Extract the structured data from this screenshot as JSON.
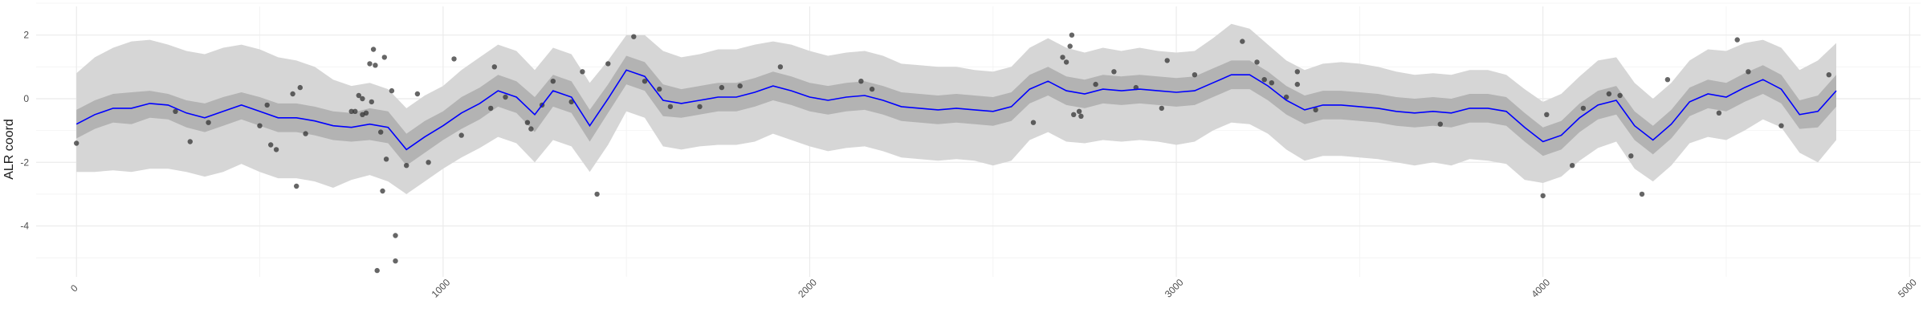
{
  "chart_data": {
    "type": "line",
    "title": "",
    "xlabel": "",
    "ylabel": "ALR coord",
    "xlim": [
      -110,
      5030
    ],
    "ylim": [
      -5.6,
      2.9
    ],
    "grid": true,
    "legend": "none",
    "x_ticks": [
      0,
      1000,
      2000,
      3000,
      4000,
      5000
    ],
    "x_tick_labels": [
      "0",
      "1000",
      "2000",
      "3000",
      "4000",
      "5000"
    ],
    "y_ticks": [
      2,
      0,
      -2,
      -4
    ],
    "y_tick_labels": [
      "2",
      "0",
      "-2",
      "-4"
    ],
    "colors": {
      "line": "#0000ff",
      "inner_band": "#b3b3b3",
      "outer_band": "#d6d6d6",
      "points": "#333333",
      "grid_major": "#ebebeb",
      "grid_minor": "#f4f4f4"
    },
    "series": [
      {
        "type": "line",
        "x": [
          0,
          50,
          100,
          150,
          200,
          250,
          300,
          350,
          400,
          450,
          500,
          550,
          600,
          650,
          700,
          750,
          800,
          850,
          900,
          950,
          1000,
          1050,
          1100,
          1150,
          1200,
          1250,
          1300,
          1350,
          1400,
          1450,
          1500,
          1550,
          1600,
          1650,
          1700,
          1750,
          1800,
          1850,
          1900,
          1950,
          2000,
          2050,
          2100,
          2150,
          2200,
          2250,
          2300,
          2350,
          2400,
          2450,
          2500,
          2550,
          2600,
          2650,
          2700,
          2750,
          2800,
          2850,
          2900,
          2950,
          3000,
          3050,
          3100,
          3150,
          3200,
          3250,
          3300,
          3350,
          3400,
          3450,
          3500,
          3550,
          3600,
          3650,
          3700,
          3750,
          3800,
          3850,
          3900,
          3950,
          4000,
          4050,
          4100,
          4150,
          4200,
          4250,
          4300,
          4350,
          4400,
          4450,
          4500,
          4550,
          4600,
          4650,
          4700,
          4750,
          4800
        ],
        "y": [
          -0.8,
          -0.5,
          -0.3,
          -0.3,
          -0.15,
          -0.2,
          -0.45,
          -0.6,
          -0.4,
          -0.2,
          -0.4,
          -0.6,
          -0.6,
          -0.7,
          -0.85,
          -0.9,
          -0.8,
          -0.9,
          -1.6,
          -1.2,
          -0.85,
          -0.45,
          -0.15,
          0.25,
          0.05,
          -0.5,
          0.25,
          0.05,
          -0.85,
          0.0,
          0.9,
          0.7,
          -0.05,
          -0.15,
          -0.05,
          0.05,
          0.05,
          0.2,
          0.4,
          0.25,
          0.05,
          -0.05,
          0.05,
          0.1,
          -0.05,
          -0.25,
          -0.3,
          -0.35,
          -0.3,
          -0.35,
          -0.4,
          -0.25,
          0.3,
          0.55,
          0.25,
          0.15,
          0.3,
          0.25,
          0.3,
          0.25,
          0.2,
          0.25,
          0.5,
          0.75,
          0.75,
          0.4,
          -0.05,
          -0.35,
          -0.2,
          -0.2,
          -0.25,
          -0.3,
          -0.4,
          -0.45,
          -0.4,
          -0.45,
          -0.3,
          -0.3,
          -0.4,
          -0.9,
          -1.35,
          -1.15,
          -0.6,
          -0.2,
          -0.05,
          -0.85,
          -1.3,
          -0.8,
          -0.1,
          0.15,
          0.05,
          0.35,
          0.6,
          0.3,
          -0.5,
          -0.4,
          0.25
        ],
        "inner_upper": [
          -0.35,
          -0.05,
          0.15,
          0.2,
          0.25,
          0.15,
          -0.05,
          -0.15,
          0.05,
          0.2,
          0.05,
          -0.15,
          -0.15,
          -0.25,
          -0.4,
          -0.45,
          -0.3,
          -0.4,
          -1.1,
          -0.7,
          -0.4,
          0.05,
          0.35,
          0.75,
          0.55,
          0.05,
          0.75,
          0.55,
          -0.35,
          0.45,
          1.35,
          1.15,
          0.45,
          0.3,
          0.4,
          0.5,
          0.5,
          0.65,
          0.85,
          0.7,
          0.5,
          0.4,
          0.5,
          0.55,
          0.4,
          0.2,
          0.15,
          0.1,
          0.15,
          0.1,
          0.05,
          0.2,
          0.75,
          1.0,
          0.7,
          0.6,
          0.75,
          0.7,
          0.75,
          0.7,
          0.65,
          0.7,
          0.95,
          1.2,
          1.2,
          0.85,
          0.4,
          0.1,
          0.25,
          0.25,
          0.2,
          0.15,
          0.05,
          0.0,
          0.05,
          0.0,
          0.15,
          0.15,
          0.05,
          -0.45,
          -0.9,
          -0.7,
          -0.15,
          0.25,
          0.4,
          -0.4,
          -0.85,
          -0.35,
          0.35,
          0.6,
          0.5,
          0.8,
          1.05,
          0.75,
          -0.05,
          0.1,
          0.75
        ],
        "inner_lower": [
          -1.25,
          -0.95,
          -0.75,
          -0.8,
          -0.6,
          -0.65,
          -0.9,
          -1.05,
          -0.85,
          -0.65,
          -0.85,
          -1.05,
          -1.05,
          -1.15,
          -1.3,
          -1.35,
          -1.3,
          -1.4,
          -2.1,
          -1.7,
          -1.3,
          -0.95,
          -0.65,
          -0.25,
          -0.45,
          -1.05,
          -0.25,
          -0.45,
          -1.35,
          -0.45,
          0.45,
          0.25,
          -0.55,
          -0.6,
          -0.5,
          -0.4,
          -0.4,
          -0.25,
          -0.05,
          -0.2,
          -0.4,
          -0.5,
          -0.4,
          -0.35,
          -0.5,
          -0.7,
          -0.75,
          -0.8,
          -0.75,
          -0.8,
          -0.85,
          -0.7,
          -0.15,
          0.1,
          -0.2,
          -0.3,
          -0.15,
          -0.2,
          -0.15,
          -0.2,
          -0.25,
          -0.2,
          0.05,
          0.3,
          0.3,
          -0.05,
          -0.5,
          -0.8,
          -0.65,
          -0.65,
          -0.7,
          -0.75,
          -0.85,
          -0.9,
          -0.85,
          -0.9,
          -0.75,
          -0.75,
          -0.85,
          -1.35,
          -1.8,
          -1.6,
          -1.05,
          -0.65,
          -0.5,
          -1.3,
          -1.75,
          -1.25,
          -0.55,
          -0.3,
          -0.4,
          -0.1,
          0.15,
          -0.15,
          -0.95,
          -0.9,
          -0.25
        ],
        "outer_upper": [
          0.8,
          1.3,
          1.6,
          1.8,
          1.85,
          1.7,
          1.5,
          1.4,
          1.6,
          1.7,
          1.55,
          1.3,
          1.2,
          1.0,
          0.6,
          0.4,
          0.5,
          0.3,
          -0.3,
          0.1,
          0.4,
          0.9,
          1.3,
          1.7,
          1.5,
          0.9,
          1.6,
          1.4,
          0.5,
          1.2,
          2.0,
          2.0,
          1.5,
          1.3,
          1.4,
          1.55,
          1.55,
          1.7,
          1.8,
          1.7,
          1.5,
          1.35,
          1.45,
          1.5,
          1.35,
          1.1,
          1.05,
          1.0,
          1.0,
          0.9,
          0.85,
          1.0,
          1.6,
          1.9,
          1.6,
          1.45,
          1.6,
          1.5,
          1.6,
          1.5,
          1.45,
          1.5,
          1.9,
          2.35,
          2.2,
          1.7,
          1.2,
          0.9,
          1.1,
          1.15,
          1.1,
          1.0,
          0.85,
          0.75,
          0.8,
          0.75,
          0.9,
          0.9,
          0.75,
          0.3,
          -0.1,
          0.15,
          0.7,
          1.2,
          1.3,
          0.5,
          0.0,
          0.5,
          1.2,
          1.55,
          1.5,
          1.75,
          1.85,
          1.6,
          0.9,
          1.2,
          1.75
        ],
        "outer_lower": [
          -2.3,
          -2.3,
          -2.25,
          -2.3,
          -2.2,
          -2.2,
          -2.3,
          -2.45,
          -2.3,
          -2.05,
          -2.3,
          -2.5,
          -2.5,
          -2.6,
          -2.8,
          -2.55,
          -2.4,
          -2.6,
          -3.0,
          -2.6,
          -2.2,
          -1.85,
          -1.55,
          -1.2,
          -1.4,
          -2.0,
          -1.3,
          -1.5,
          -2.3,
          -1.45,
          -0.4,
          -0.6,
          -1.5,
          -1.6,
          -1.5,
          -1.45,
          -1.45,
          -1.35,
          -1.1,
          -1.3,
          -1.5,
          -1.65,
          -1.55,
          -1.5,
          -1.65,
          -1.85,
          -1.9,
          -1.95,
          -1.9,
          -1.95,
          -2.1,
          -1.95,
          -1.3,
          -1.05,
          -1.35,
          -1.4,
          -1.3,
          -1.35,
          -1.3,
          -1.35,
          -1.45,
          -1.35,
          -1.0,
          -0.75,
          -0.8,
          -1.1,
          -1.6,
          -1.95,
          -1.8,
          -1.8,
          -1.85,
          -1.9,
          -2.0,
          -2.1,
          -2.0,
          -2.1,
          -1.9,
          -1.95,
          -2.05,
          -2.55,
          -2.65,
          -2.45,
          -1.95,
          -1.55,
          -1.35,
          -2.2,
          -2.6,
          -2.1,
          -1.4,
          -1.2,
          -1.3,
          -1.0,
          -0.65,
          -0.9,
          -1.7,
          -2.0,
          -1.3
        ]
      },
      {
        "type": "scatter",
        "points": [
          [
            0,
            -1.4
          ],
          [
            270,
            -0.4
          ],
          [
            310,
            -1.35
          ],
          [
            360,
            -0.75
          ],
          [
            500,
            -0.85
          ],
          [
            520,
            -0.2
          ],
          [
            530,
            -1.45
          ],
          [
            545,
            -1.6
          ],
          [
            590,
            0.15
          ],
          [
            600,
            -2.75
          ],
          [
            610,
            0.35
          ],
          [
            625,
            -1.1
          ],
          [
            760,
            -0.4
          ],
          [
            770,
            0.1
          ],
          [
            780,
            -0.5
          ],
          [
            790,
            -0.45
          ],
          [
            800,
            1.1
          ],
          [
            805,
            -0.1
          ],
          [
            810,
            1.55
          ],
          [
            815,
            1.05
          ],
          [
            830,
            -1.05
          ],
          [
            835,
            -2.9
          ],
          [
            840,
            1.3
          ],
          [
            845,
            -1.9
          ],
          [
            860,
            0.25
          ],
          [
            870,
            -4.3
          ],
          [
            870,
            -5.1
          ],
          [
            900,
            -2.1
          ],
          [
            930,
            0.15
          ],
          [
            780,
            0.0
          ],
          [
            750,
            -0.4
          ],
          [
            820,
            -5.4
          ],
          [
            960,
            -2.0
          ],
          [
            1030,
            1.25
          ],
          [
            1050,
            -1.15
          ],
          [
            1130,
            -0.3
          ],
          [
            1140,
            1.0
          ],
          [
            1170,
            0.05
          ],
          [
            1230,
            -0.75
          ],
          [
            1240,
            -0.95
          ],
          [
            1270,
            -0.2
          ],
          [
            1300,
            0.55
          ],
          [
            1350,
            -0.1
          ],
          [
            1380,
            0.85
          ],
          [
            1420,
            -3.0
          ],
          [
            1450,
            1.1
          ],
          [
            1520,
            1.95
          ],
          [
            1550,
            0.55
          ],
          [
            1590,
            0.3
          ],
          [
            1620,
            -0.25
          ],
          [
            1700,
            -0.25
          ],
          [
            1760,
            0.35
          ],
          [
            1810,
            0.4
          ],
          [
            1920,
            1.0
          ],
          [
            2140,
            0.55
          ],
          [
            2170,
            0.3
          ],
          [
            2610,
            -0.75
          ],
          [
            2690,
            1.3
          ],
          [
            2700,
            1.15
          ],
          [
            2710,
            1.65
          ],
          [
            2715,
            2.0
          ],
          [
            2720,
            -0.5
          ],
          [
            2735,
            -0.4
          ],
          [
            2740,
            -0.55
          ],
          [
            2780,
            0.45
          ],
          [
            2830,
            0.85
          ],
          [
            2890,
            0.35
          ],
          [
            2960,
            -0.3
          ],
          [
            2975,
            1.2
          ],
          [
            3050,
            0.75
          ],
          [
            3180,
            1.8
          ],
          [
            3220,
            1.15
          ],
          [
            3240,
            0.6
          ],
          [
            3260,
            0.5
          ],
          [
            3300,
            0.05
          ],
          [
            3330,
            0.85
          ],
          [
            3330,
            0.45
          ],
          [
            3380,
            -0.35
          ],
          [
            3720,
            -0.8
          ],
          [
            4000,
            -3.05
          ],
          [
            4010,
            -0.5
          ],
          [
            4080,
            -2.1
          ],
          [
            4110,
            -0.3
          ],
          [
            4180,
            0.15
          ],
          [
            4210,
            0.1
          ],
          [
            4240,
            -1.8
          ],
          [
            4270,
            -3.0
          ],
          [
            4340,
            0.6
          ],
          [
            4480,
            -0.45
          ],
          [
            4530,
            1.85
          ],
          [
            4560,
            0.85
          ],
          [
            4650,
            -0.85
          ],
          [
            4780,
            0.75
          ]
        ]
      }
    ]
  }
}
